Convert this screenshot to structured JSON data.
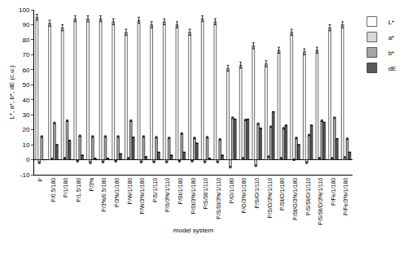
{
  "chart_data": {
    "type": "bar",
    "x_label": "model system",
    "y_label": "L*, a*, b*, dE (c.u.)",
    "categories": [
      "P",
      "P/0.5/180",
      "P/1/180",
      "P/1.5/180",
      "P/3%",
      "P/3%/0.5/180",
      "P/3%/1/180",
      "P/W/1/180",
      "P/W/3%/1/180",
      "P/S/1/110",
      "P/S/3%/1/110",
      "P/St/1/180",
      "P/St/3%/1/180",
      "P/S/St/1/110",
      "P/S/St/3%/1/110",
      "P/O/1/180",
      "P/O/3%/1/180",
      "P/S/O/1/110",
      "P/S/O/3%/1/110",
      "P/St/O/1/180",
      "P/St/O/3%/1/180",
      "P/S/St/O/1/110",
      "P/S/St/O/3%/1/110",
      "P/Fe/1/180",
      "P/Fe/3%/1/180"
    ],
    "series": [
      {
        "name": "L*",
        "color": "#ffffff",
        "values": [
          95,
          91,
          88,
          94,
          94,
          94,
          92,
          85,
          93,
          90,
          92,
          90,
          85,
          94,
          92,
          61,
          63,
          76,
          64,
          73,
          85,
          72,
          73,
          88,
          90
        ],
        "errors": [
          2,
          2,
          2,
          2,
          2,
          2,
          2,
          2,
          2,
          2,
          2,
          2,
          2,
          2,
          2,
          2,
          2,
          2,
          2,
          2,
          2,
          2,
          2,
          2,
          2
        ]
      },
      {
        "name": "a*",
        "color": "#d9d9d9",
        "values": [
          -2,
          0.5,
          1,
          -1,
          -2,
          -1.5,
          -1,
          1,
          -1.5,
          -1.5,
          -1.5,
          -1,
          -1,
          -1.5,
          -1.5,
          -5,
          1,
          -4,
          2,
          1,
          0,
          -2,
          1,
          1,
          1.5
        ],
        "errors": [
          0.5,
          0.5,
          0.5,
          0.5,
          0.5,
          0.5,
          0.5,
          0.5,
          0.5,
          0.5,
          0.5,
          0.5,
          0.5,
          0.5,
          0.5,
          0.5,
          0.5,
          0.5,
          0.5,
          0.5,
          0.5,
          0.5,
          0.5,
          0.5,
          0.5
        ]
      },
      {
        "name": "b*",
        "color": "#a6a6a6",
        "values": [
          15.5,
          24.5,
          26,
          16,
          15.5,
          15.5,
          15.5,
          26,
          15.5,
          15,
          14.5,
          17.5,
          14.5,
          15,
          13.5,
          28,
          26.5,
          24,
          22,
          21,
          14.5,
          16.5,
          26,
          28,
          14
        ],
        "errors": [
          0.5,
          0.5,
          0.5,
          0.5,
          0.5,
          0.5,
          0.5,
          0.5,
          0.5,
          0.5,
          0.5,
          0.5,
          0.5,
          0.5,
          0.5,
          0.5,
          0.5,
          0.5,
          0.5,
          0.5,
          0.5,
          0.5,
          0.5,
          0.5,
          0.5
        ]
      },
      {
        "name": "dE",
        "color": "#595959",
        "values": [
          0,
          10,
          13,
          3,
          1,
          1,
          4,
          15,
          2,
          5,
          3,
          5,
          11,
          1,
          3,
          27,
          27,
          21,
          32,
          23,
          10,
          23,
          25,
          14,
          5
        ],
        "errors": [
          0,
          0,
          0,
          0,
          0,
          0,
          0,
          0,
          0,
          0,
          0,
          0,
          0,
          0,
          0,
          0,
          0,
          0,
          0,
          0,
          0,
          0,
          0,
          0,
          0
        ]
      }
    ],
    "ylim": [
      -10,
      100
    ],
    "yticks": [
      -10,
      0,
      10,
      20,
      30,
      40,
      50,
      60,
      70,
      80,
      90,
      100
    ],
    "grid": false,
    "legend": "right"
  }
}
